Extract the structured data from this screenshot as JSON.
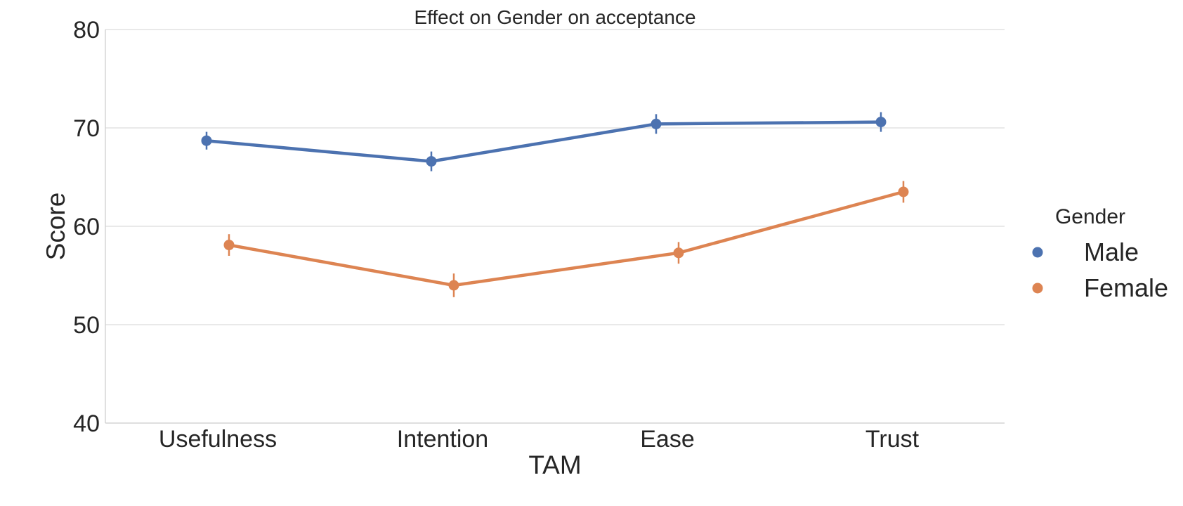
{
  "chart_data": {
    "type": "line",
    "title": "Effect on Gender on acceptance",
    "xlabel": "TAM",
    "ylabel": "Score",
    "categories": [
      "Usefulness",
      "Intention",
      "Ease",
      "Trust"
    ],
    "ylim": [
      40,
      80
    ],
    "yticks": [
      40,
      50,
      60,
      70,
      80
    ],
    "grid": "horizontal",
    "legend": {
      "title": "Gender",
      "placement": "right"
    },
    "series": [
      {
        "name": "Male",
        "color": "#4c72b0",
        "values": [
          68.7,
          66.6,
          70.4,
          70.6
        ],
        "errors": [
          0.9,
          1.0,
          1.0,
          1.0
        ]
      },
      {
        "name": "Female",
        "color": "#dd8452",
        "values": [
          58.1,
          54.0,
          57.3,
          63.5
        ],
        "errors": [
          1.1,
          1.2,
          1.1,
          1.1
        ]
      }
    ]
  }
}
